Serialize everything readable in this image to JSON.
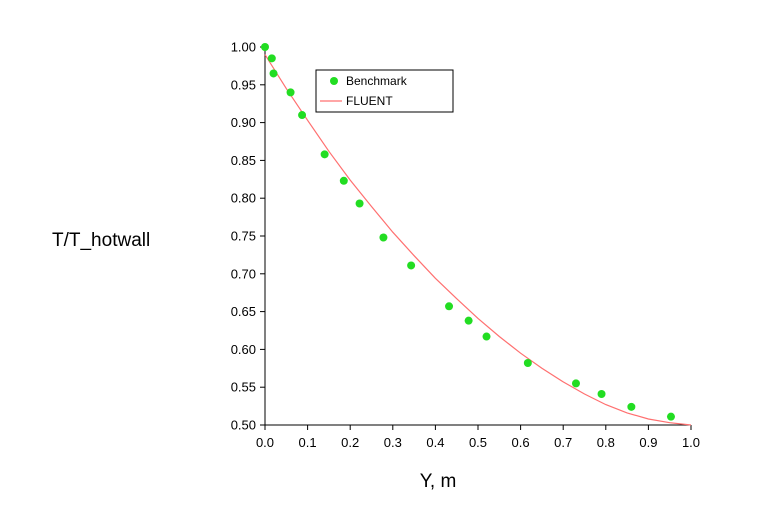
{
  "chart_data": {
    "type": "scatter",
    "title": "",
    "xlabel": "Y, m",
    "ylabel": "T/T_hotwall",
    "xlim": [
      0.0,
      1.0
    ],
    "ylim": [
      0.5,
      1.0
    ],
    "xticks": [
      "0.0",
      "0.1",
      "0.2",
      "0.3",
      "0.4",
      "0.5",
      "0.6",
      "0.7",
      "0.8",
      "0.9",
      "1.0"
    ],
    "yticks": [
      "0.50",
      "0.55",
      "0.60",
      "0.65",
      "0.70",
      "0.75",
      "0.80",
      "0.85",
      "0.90",
      "0.95",
      "1.00"
    ],
    "grid": false,
    "legend_position": "top",
    "series": [
      {
        "name": "Benchmark",
        "kind": "points",
        "color": "#22dd22",
        "x": [
          0.0,
          0.016,
          0.02,
          0.06,
          0.087,
          0.14,
          0.185,
          0.222,
          0.278,
          0.343,
          0.432,
          0.478,
          0.52,
          0.617,
          0.73,
          0.79,
          0.86,
          0.953
        ],
        "y": [
          1.0,
          0.985,
          0.965,
          0.94,
          0.91,
          0.858,
          0.823,
          0.793,
          0.748,
          0.711,
          0.657,
          0.638,
          0.617,
          0.582,
          0.555,
          0.541,
          0.524,
          0.511
        ]
      },
      {
        "name": "FLUENT",
        "kind": "line",
        "color": "#ff7070",
        "x": [
          0.0,
          0.02,
          0.05,
          0.1,
          0.15,
          0.2,
          0.25,
          0.3,
          0.35,
          0.4,
          0.45,
          0.5,
          0.55,
          0.6,
          0.65,
          0.7,
          0.75,
          0.8,
          0.85,
          0.9,
          0.95,
          1.0
        ],
        "y": [
          0.99,
          0.972,
          0.945,
          0.903,
          0.862,
          0.824,
          0.789,
          0.755,
          0.724,
          0.694,
          0.667,
          0.641,
          0.617,
          0.595,
          0.575,
          0.557,
          0.541,
          0.527,
          0.516,
          0.508,
          0.503,
          0.5
        ]
      }
    ]
  }
}
